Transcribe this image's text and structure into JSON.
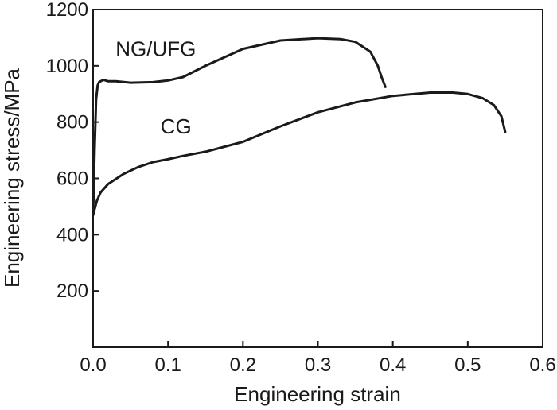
{
  "chart_data": {
    "type": "line",
    "xlabel": "Engineering strain",
    "ylabel": "Engineering stress/MPa",
    "xlim": [
      0.0,
      0.6
    ],
    "ylim": [
      0,
      1200
    ],
    "xticks": [
      0.0,
      0.1,
      0.2,
      0.3,
      0.4,
      0.5,
      0.6
    ],
    "xtick_labels": [
      "0.0",
      "0.1",
      "0.2",
      "0.3",
      "0.4",
      "0.5",
      "0.6"
    ],
    "yticks": [
      200,
      400,
      600,
      800,
      1000,
      1200
    ],
    "ytick_labels": [
      "200",
      "400",
      "600",
      "800",
      "1000",
      "1200"
    ],
    "grid": false,
    "legend": "none",
    "series": [
      {
        "name": "NG/UFG",
        "x": [
          0.0,
          0.002,
          0.004,
          0.006,
          0.008,
          0.01,
          0.014,
          0.02,
          0.03,
          0.05,
          0.08,
          0.1,
          0.12,
          0.15,
          0.2,
          0.25,
          0.3,
          0.33,
          0.35,
          0.37,
          0.38,
          0.385,
          0.39
        ],
        "y": [
          470,
          700,
          880,
          930,
          942,
          945,
          950,
          945,
          945,
          940,
          942,
          948,
          960,
          1000,
          1060,
          1090,
          1098,
          1095,
          1085,
          1050,
          1000,
          960,
          925
        ]
      },
      {
        "name": "CG",
        "x": [
          0.0,
          0.005,
          0.01,
          0.02,
          0.04,
          0.06,
          0.08,
          0.1,
          0.12,
          0.15,
          0.2,
          0.25,
          0.3,
          0.35,
          0.4,
          0.45,
          0.48,
          0.5,
          0.52,
          0.535,
          0.545,
          0.55
        ],
        "y": [
          470,
          520,
          550,
          580,
          615,
          640,
          658,
          668,
          680,
          695,
          730,
          785,
          835,
          870,
          893,
          905,
          905,
          900,
          885,
          860,
          820,
          765
        ]
      }
    ],
    "annotations": [
      {
        "text": "NG/UFG",
        "x": 0.03,
        "y": 1035
      },
      {
        "text": "CG",
        "x": 0.09,
        "y": 760
      }
    ]
  }
}
